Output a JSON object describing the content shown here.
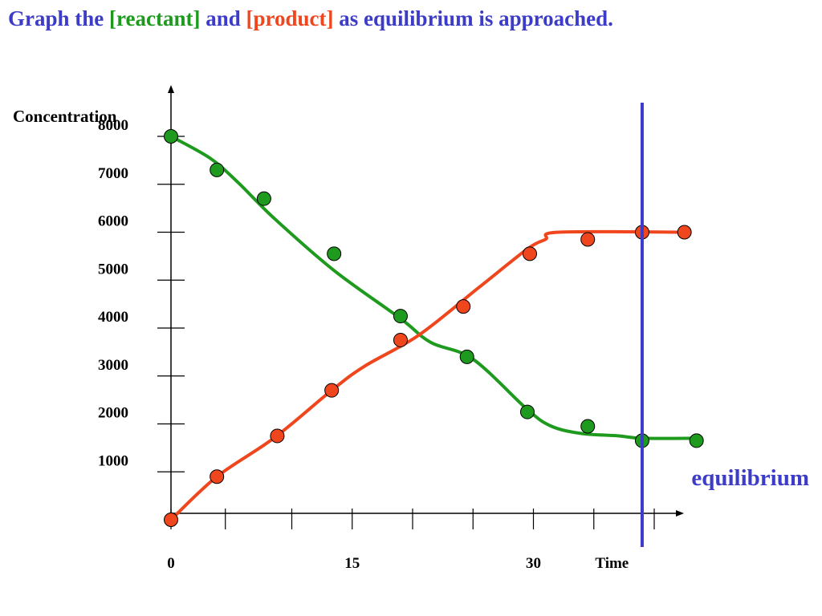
{
  "title": {
    "part1": "Graph the ",
    "reactant": "[reactant]",
    "part2": " and ",
    "product": "[product]",
    "part3": " as equilibrium is approached."
  },
  "colors": {
    "title_text": "#3c3cc8",
    "reactant": "#1e9a1e",
    "product": "#f0461e",
    "equilibrium_line": "#3c3cc8"
  },
  "chart_data": {
    "type": "line",
    "ylabel": "Concentration",
    "xlabel": "Time",
    "xlim": [
      0,
      45
    ],
    "ylim": [
      0,
      8000
    ],
    "y_ticks": [
      "8000",
      "7000",
      "6000",
      "5000",
      "4000",
      "3000",
      "2000",
      "1000"
    ],
    "x_tick_labels": [
      {
        "x": 0,
        "label": "0"
      },
      {
        "x": 15,
        "label": "15"
      },
      {
        "x": 30,
        "label": "30"
      },
      {
        "x": 36.5,
        "label": "Time"
      }
    ],
    "x_tick_marks": [
      0,
      4.5,
      10,
      15,
      20,
      25,
      30,
      35,
      40
    ],
    "series": [
      {
        "name": "[reactant]",
        "color": "#1e9a1e",
        "points": [
          [
            0,
            8000
          ],
          [
            3.8,
            7300
          ],
          [
            7.7,
            6700
          ],
          [
            13.5,
            5550
          ],
          [
            19,
            4250
          ],
          [
            24.5,
            3400
          ],
          [
            29.5,
            2250
          ],
          [
            34.5,
            1950
          ],
          [
            39,
            1650
          ],
          [
            43.5,
            1650
          ]
        ],
        "curve": [
          [
            0,
            8000
          ],
          [
            3.2,
            7550
          ],
          [
            5.5,
            7050
          ],
          [
            8.5,
            6300
          ],
          [
            13.5,
            5200
          ],
          [
            19,
            4200
          ],
          [
            21.5,
            3700
          ],
          [
            25,
            3350
          ],
          [
            29.5,
            2300
          ],
          [
            31.5,
            1950
          ],
          [
            34,
            1800
          ],
          [
            37,
            1750
          ],
          [
            39,
            1700
          ],
          [
            43.5,
            1700
          ]
        ]
      },
      {
        "name": "[product]",
        "color": "#f0461e",
        "points": [
          [
            0,
            0
          ],
          [
            3.8,
            900
          ],
          [
            8.8,
            1750
          ],
          [
            13.3,
            2700
          ],
          [
            19,
            3750
          ],
          [
            24.2,
            4450
          ],
          [
            29.7,
            5550
          ],
          [
            34.5,
            5850
          ],
          [
            39,
            6000
          ],
          [
            42.5,
            6000
          ]
        ],
        "curve": [
          [
            0,
            0
          ],
          [
            3.8,
            900
          ],
          [
            8.5,
            1700
          ],
          [
            13.3,
            2700
          ],
          [
            16,
            3200
          ],
          [
            20.5,
            3850
          ],
          [
            25.5,
            4850
          ],
          [
            29.5,
            5650
          ],
          [
            31,
            5850
          ],
          [
            32.1,
            6000
          ],
          [
            42.5,
            6000
          ]
        ]
      }
    ],
    "equilibrium": {
      "x": 39,
      "label": "equilibrium"
    }
  }
}
